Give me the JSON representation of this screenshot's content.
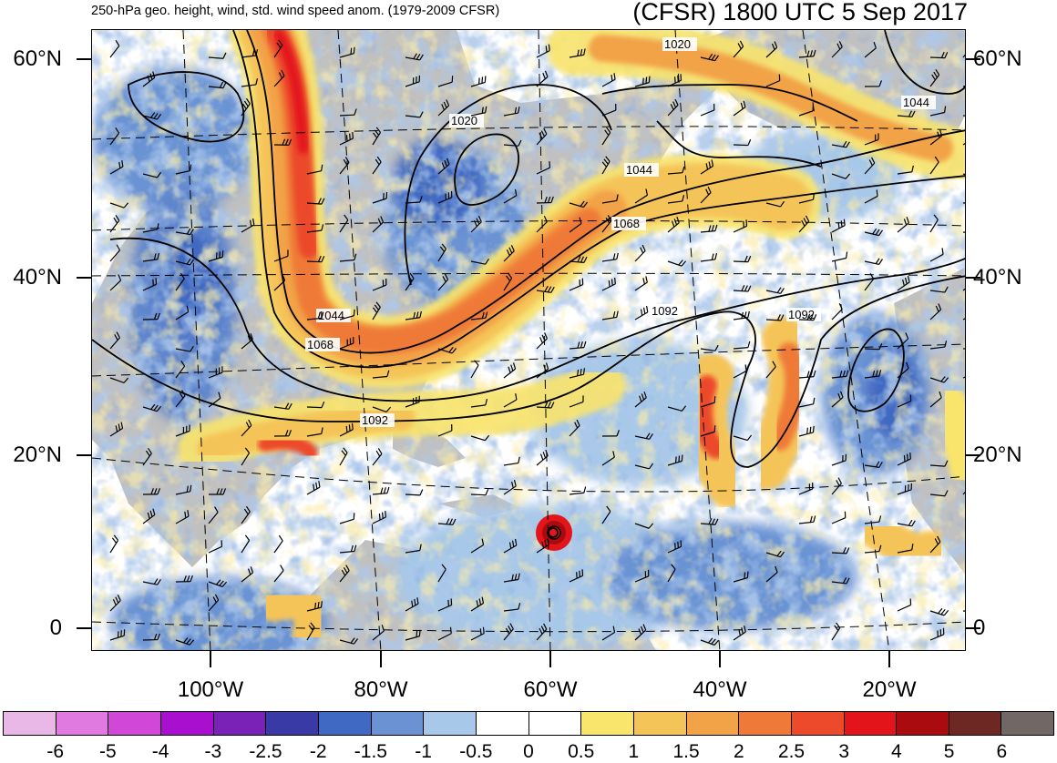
{
  "header": {
    "subtitle": "250-hPa geo. height, wind, std. wind speed anom. (1979-2009 CFSR)",
    "title": "(CFSR) 1800 UTC 5 Sep 2017"
  },
  "axes": {
    "lat_labels": [
      "60°N",
      "40°N",
      "20°N",
      "0"
    ],
    "lon_labels": [
      "100°W",
      "80°W",
      "60°W",
      "40°W",
      "20°W"
    ]
  },
  "contours": {
    "label_values": [
      "1020",
      "1020",
      "1044",
      "1044",
      "1044",
      "1068",
      "1068",
      "1092",
      "1092",
      "1092"
    ]
  },
  "colorbar": {
    "labels": [
      "-6",
      "-5",
      "-4",
      "-3",
      "-2.5",
      "-2",
      "-1.5",
      "-1",
      "-0.5",
      "0",
      "0.5",
      "1",
      "1.5",
      "2",
      "2.5",
      "3",
      "4",
      "5",
      "6"
    ],
    "colors": [
      "#e9b8e6",
      "#e07ae0",
      "#d148d9",
      "#a80fcf",
      "#7a22b8",
      "#3a3aa6",
      "#3f69c2",
      "#6b93d4",
      "#a7c8e8",
      "#ffffff",
      "#ffffff",
      "#f9e46c",
      "#f5c458",
      "#f2a247",
      "#ef7a37",
      "#ec4a2a",
      "#e3141a",
      "#a90b0f",
      "#6e2824",
      "#716866"
    ]
  },
  "map": {
    "land_color": "#c0c0c0",
    "neutral_color": "#ffffff"
  }
}
